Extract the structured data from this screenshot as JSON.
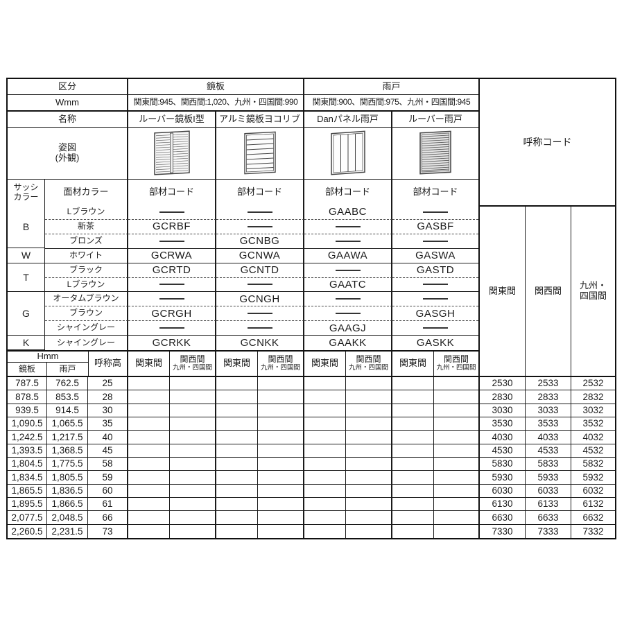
{
  "table": {
    "top": {
      "kubun": "区分",
      "wmm": "Wmm",
      "meisho": "名称",
      "sugata_line1": "姿図",
      "sugata_line2": "(外観)",
      "kagamiita": "鏡板",
      "amado": "雨戸",
      "kagamiita_w": "関東間:945、関西間:1,020、九州・四国間:990",
      "amado_w": "関東間:900、関西間:975、九州・四国間:945",
      "products": [
        "ルーバー鏡板I型",
        "アルミ鏡板ヨコリブ",
        "Danパネル雨戸",
        "ルーバー雨戸"
      ],
      "code_header": "部材コード",
      "sash_line1": "サッシ",
      "sash_line2": "カラー",
      "menzai": "面材カラー",
      "kosho_code": "呼称コード"
    },
    "images": {
      "product1": "louver-kagamiita-drawing",
      "product2": "yokorib-kagamiita-drawing",
      "product3": "dan-panel-amado-drawing",
      "product4": "louver-amado-drawing"
    },
    "color_groups": [
      {
        "sash": "B",
        "rows": [
          {
            "color": "Lブラウン",
            "codes": [
              "",
              "",
              "GAABC",
              ""
            ]
          },
          {
            "color": "新茶",
            "codes": [
              "GCRBF",
              "",
              "",
              "GASBF"
            ]
          },
          {
            "color": "ブロンズ",
            "codes": [
              "",
              "GCNBG",
              "",
              ""
            ]
          }
        ]
      },
      {
        "sash": "W",
        "rows": [
          {
            "color": "ホワイト",
            "codes": [
              "GCRWA",
              "GCNWA",
              "GAAWA",
              "GASWA"
            ]
          }
        ]
      },
      {
        "sash": "T",
        "rows": [
          {
            "color": "ブラック",
            "codes": [
              "GCRTD",
              "GCNTD",
              "",
              "GASTD"
            ]
          },
          {
            "color": "Lブラウン",
            "codes": [
              "",
              "",
              "GAATC",
              ""
            ]
          }
        ]
      },
      {
        "sash": "G",
        "rows": [
          {
            "color": "オータムブラウン",
            "codes": [
              "",
              "GCNGH",
              "",
              ""
            ]
          },
          {
            "color": "ブラウン",
            "codes": [
              "GCRGH",
              "",
              "",
              "GASGH"
            ]
          },
          {
            "color": "シャイングレー",
            "codes": [
              "",
              "",
              "GAAGJ",
              ""
            ]
          }
        ]
      },
      {
        "sash": "K",
        "rows": [
          {
            "color": "シャイングレー",
            "codes": [
              "GCRKK",
              "GCNKK",
              "GAAKK",
              "GASKK"
            ]
          }
        ]
      }
    ],
    "bottom_header": {
      "hmm": "Hmm",
      "kagamiita": "鏡板",
      "amado": "雨戸",
      "kosho_daka": "呼称高",
      "kanto": "関東間",
      "kansai": "関西間",
      "kyushu_small": "九州・四国間"
    },
    "region_cols": {
      "kanto": "関東間",
      "kansai": "関西間",
      "kyushu_line1": "九州・",
      "kyushu_line2": "四国間"
    },
    "size_rows": [
      {
        "kagami": "787.5",
        "amado": "762.5",
        "height": "25",
        "codes": [
          "2530",
          "2533",
          "2532"
        ]
      },
      {
        "kagami": "878.5",
        "amado": "853.5",
        "height": "28",
        "codes": [
          "2830",
          "2833",
          "2832"
        ]
      },
      {
        "kagami": "939.5",
        "amado": "914.5",
        "height": "30",
        "codes": [
          "3030",
          "3033",
          "3032"
        ]
      },
      {
        "kagami": "1,090.5",
        "amado": "1,065.5",
        "height": "35",
        "codes": [
          "3530",
          "3533",
          "3532"
        ]
      },
      {
        "kagami": "1,242.5",
        "amado": "1,217.5",
        "height": "40",
        "codes": [
          "4030",
          "4033",
          "4032"
        ]
      },
      {
        "kagami": "1,393.5",
        "amado": "1,368.5",
        "height": "45",
        "codes": [
          "4530",
          "4533",
          "4532"
        ]
      },
      {
        "kagami": "1,804.5",
        "amado": "1,775.5",
        "height": "58",
        "codes": [
          "5830",
          "5833",
          "5832"
        ]
      },
      {
        "kagami": "1,834.5",
        "amado": "1,805.5",
        "height": "59",
        "codes": [
          "5930",
          "5933",
          "5932"
        ]
      },
      {
        "kagami": "1,865.5",
        "amado": "1,836.5",
        "height": "60",
        "codes": [
          "6030",
          "6033",
          "6032"
        ]
      },
      {
        "kagami": "1,895.5",
        "amado": "1,866.5",
        "height": "61",
        "codes": [
          "6130",
          "6133",
          "6132"
        ]
      },
      {
        "kagami": "2,077.5",
        "amado": "2,048.5",
        "height": "66",
        "codes": [
          "6630",
          "6633",
          "6632"
        ]
      },
      {
        "kagami": "2,260.5",
        "amado": "2,231.5",
        "height": "73",
        "codes": [
          "7330",
          "7333",
          "7332"
        ]
      }
    ]
  }
}
